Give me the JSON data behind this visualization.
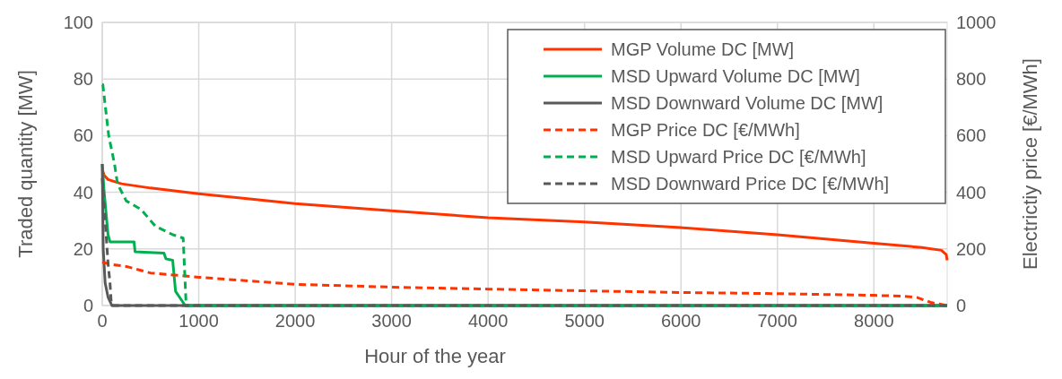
{
  "chart_data": {
    "type": "line",
    "xlabel": "Hour of the year",
    "ylabel": "Traded quantity [MW]",
    "y2label": "Electrictiy price [€/MWh]",
    "xlim": [
      0,
      8760
    ],
    "xticks": [
      0,
      1000,
      2000,
      3000,
      4000,
      5000,
      6000,
      7000,
      8000
    ],
    "ylim": [
      0,
      100
    ],
    "yticks": [
      0,
      20,
      40,
      60,
      80,
      100
    ],
    "y2lim": [
      0,
      1000
    ],
    "y2ticks": [
      0,
      200,
      400,
      600,
      800,
      1000
    ],
    "grid": true,
    "legend": "top right",
    "series": [
      {
        "name": "MGP Volume DC [MW]",
        "color": "#ff3300",
        "line_style": "solid",
        "x": [
          0,
          20,
          60,
          200,
          500,
          1000,
          2000,
          3000,
          4000,
          5000,
          6000,
          7000,
          8000,
          8500,
          8700,
          8750,
          8760
        ],
        "values": [
          48,
          46,
          44.5,
          43,
          41.5,
          39.5,
          36,
          33.5,
          31,
          29.5,
          27.5,
          25,
          22,
          20.5,
          19.5,
          18,
          16
        ]
      },
      {
        "name": "MSD Upward Volume DC [MW]",
        "color": "#00b050",
        "line_style": "solid",
        "x": [
          0,
          20,
          60,
          80,
          330,
          340,
          640,
          660,
          730,
          760,
          800,
          860,
          8760
        ],
        "values": [
          50,
          40,
          25,
          22.5,
          22.5,
          19,
          18.5,
          16.5,
          16,
          5,
          3,
          0,
          0
        ]
      },
      {
        "name": "MSD Downward Volume DC [MW]",
        "color": "#595959",
        "line_style": "solid",
        "x": [
          0,
          10,
          30,
          60,
          100,
          8760
        ],
        "values": [
          50,
          20,
          8,
          3,
          0,
          0
        ]
      },
      {
        "name": "MGP Price DC [€/MWh]",
        "color": "#ff3300",
        "line_style": "dashed",
        "axis": "y2",
        "x": [
          0,
          100,
          250,
          500,
          1000,
          2000,
          3000,
          4000,
          5000,
          6000,
          7000,
          8000,
          8300,
          8450,
          8600,
          8760
        ],
        "values": [
          153,
          145,
          138,
          115,
          100,
          75,
          65,
          58,
          52,
          46,
          42,
          36,
          33,
          28,
          10,
          0
        ]
      },
      {
        "name": "MSD Upward Price DC [€/MWh]",
        "color": "#00b050",
        "line_style": "dashed",
        "axis": "y2",
        "x": [
          0,
          6,
          67,
          127,
          158,
          248,
          400,
          552,
          733,
          839,
          870,
          8760
        ],
        "values": [
          780,
          780,
          600,
          500,
          430,
          370,
          340,
          280,
          250,
          238,
          0,
          0
        ]
      },
      {
        "name": "MSD Downward Price DC [€/MWh]",
        "color": "#595959",
        "line_style": "dashed",
        "axis": "y2",
        "x": [
          0,
          20,
          40,
          60,
          80,
          95,
          8760
        ],
        "values": [
          450,
          350,
          250,
          150,
          80,
          0,
          0
        ]
      }
    ]
  }
}
